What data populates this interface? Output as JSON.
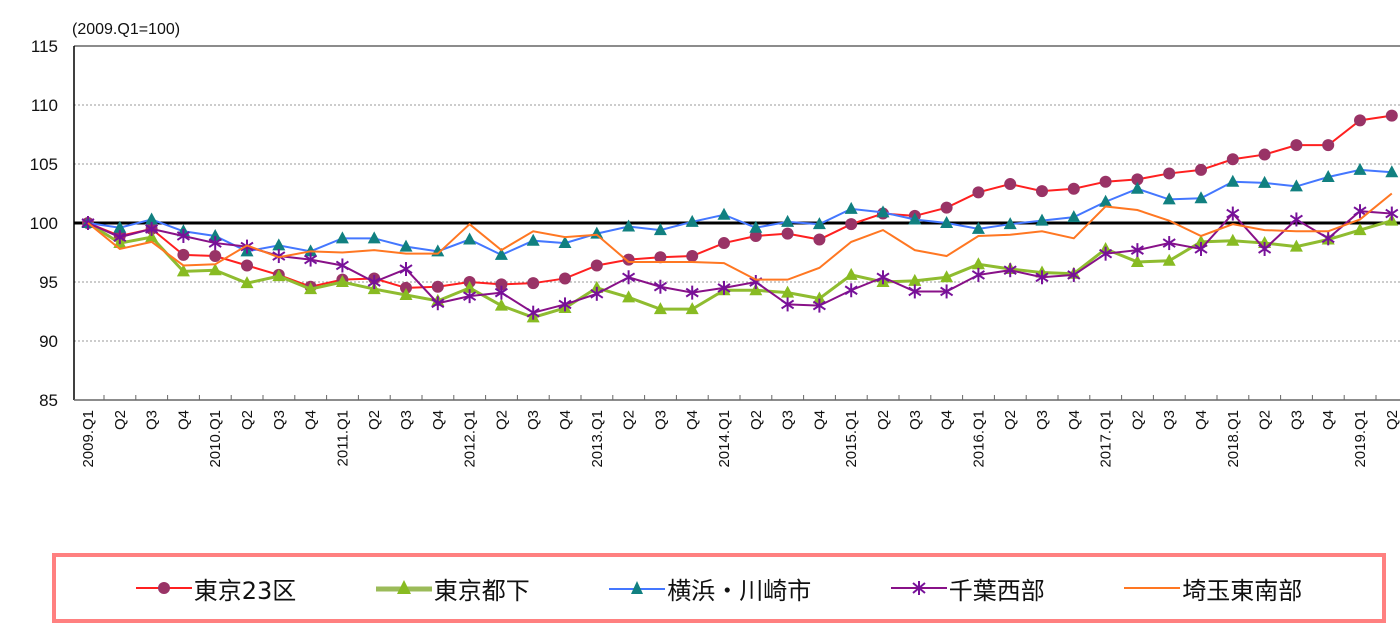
{
  "chart_data": {
    "type": "line",
    "title": "",
    "subtitle": "(2009.Q1=100)",
    "xlabel": "",
    "ylabel": "",
    "ylim": [
      85,
      115
    ],
    "yticks": [
      85,
      90,
      95,
      100,
      105,
      110,
      115
    ],
    "grid": true,
    "baseline": 100,
    "legend_position": "bottom",
    "x": [
      "2009.Q1",
      "Q2",
      "Q3",
      "Q4",
      "2010.Q1",
      "Q2",
      "Q3",
      "Q4",
      "2011.Q1",
      "Q2",
      "Q3",
      "Q4",
      "2012.Q1",
      "Q2",
      "Q3",
      "Q4",
      "2013.Q1",
      "Q2",
      "Q3",
      "Q4",
      "2014.Q1",
      "Q2",
      "Q3",
      "Q4",
      "2015.Q1",
      "Q2",
      "Q3",
      "Q4",
      "2016.Q1",
      "Q2",
      "Q3",
      "Q4",
      "2017.Q1",
      "Q2",
      "Q3",
      "Q4",
      "2018.Q1",
      "Q2",
      "Q3",
      "Q4",
      "2019.Q1",
      "Q2"
    ],
    "series": [
      {
        "name": "東京23区",
        "line_color": "#ff2020",
        "marker": "circle",
        "marker_color": "#993366",
        "values": [
          100,
          98.9,
          99.5,
          97.3,
          97.2,
          96.4,
          95.6,
          94.6,
          95.2,
          95.3,
          94.5,
          94.6,
          95.0,
          94.8,
          94.9,
          95.3,
          96.4,
          96.9,
          97.1,
          97.2,
          98.3,
          98.9,
          99.1,
          98.6,
          99.9,
          100.8,
          100.6,
          101.3,
          102.6,
          103.3,
          102.7,
          102.9,
          103.5,
          103.7,
          104.2,
          104.5,
          105.4,
          105.8,
          106.6,
          106.6,
          108.7,
          109.1
        ]
      },
      {
        "name": "東京都下",
        "line_color": "#8fbc30",
        "marker": "triangle",
        "marker_color": "#88bb22",
        "values": [
          100,
          98.3,
          98.8,
          95.9,
          96.0,
          94.9,
          95.5,
          94.4,
          95.0,
          94.4,
          93.9,
          93.4,
          94.5,
          93.0,
          92.0,
          92.8,
          94.5,
          93.7,
          92.7,
          92.7,
          94.3,
          94.3,
          94.1,
          93.6,
          95.6,
          95.0,
          95.1,
          95.4,
          96.5,
          96.1,
          95.8,
          95.7,
          97.8,
          96.7,
          96.8,
          98.4,
          98.5,
          98.3,
          98.0,
          98.6,
          99.4,
          100.2
        ]
      },
      {
        "name": "横浜・川崎市",
        "line_color": "#4477ff",
        "marker": "triangle",
        "marker_color": "#118080",
        "values": [
          100,
          99.6,
          100.3,
          99.3,
          98.9,
          97.6,
          98.1,
          97.6,
          98.7,
          98.7,
          98.0,
          97.6,
          98.6,
          97.3,
          98.5,
          98.3,
          99.1,
          99.7,
          99.4,
          100.1,
          100.7,
          99.6,
          100.1,
          99.9,
          101.2,
          100.9,
          100.3,
          100.0,
          99.5,
          99.9,
          100.2,
          100.5,
          101.8,
          102.9,
          102.0,
          102.1,
          103.5,
          103.4,
          103.1,
          103.9,
          104.5,
          104.3
        ]
      },
      {
        "name": "千葉西部",
        "line_color": "#881188",
        "marker": "asterisk",
        "marker_color": "#771199",
        "values": [
          100,
          98.8,
          99.5,
          98.9,
          98.3,
          98.0,
          97.2,
          96.9,
          96.4,
          95.0,
          96.1,
          93.2,
          93.8,
          94.1,
          92.4,
          93.1,
          94.0,
          95.4,
          94.6,
          94.1,
          94.5,
          95.0,
          93.1,
          93.0,
          94.3,
          95.4,
          94.2,
          94.2,
          95.6,
          96.0,
          95.4,
          95.6,
          97.4,
          97.7,
          98.3,
          97.8,
          100.8,
          97.8,
          100.3,
          98.7,
          101.0,
          100.8
        ]
      },
      {
        "name": "埼玉東南部",
        "line_color": "#ff7722",
        "marker": "none",
        "marker_color": "#ff7722",
        "values": [
          100,
          97.8,
          98.4,
          96.4,
          96.5,
          98.1,
          97.1,
          97.6,
          97.5,
          97.7,
          97.4,
          97.4,
          99.9,
          97.7,
          99.3,
          98.8,
          99.0,
          96.7,
          96.7,
          96.7,
          96.6,
          95.2,
          95.2,
          96.2,
          98.4,
          99.4,
          97.7,
          97.2,
          98.9,
          99.0,
          99.3,
          98.7,
          101.4,
          101.1,
          100.2,
          98.9,
          99.9,
          99.4,
          99.3,
          99.3,
          100.3,
          102.5
        ]
      }
    ]
  },
  "legend": {
    "border_color": "#ff8080",
    "items": [
      {
        "label": "東京23区"
      },
      {
        "label": "東京都下"
      },
      {
        "label": "横浜・川崎市"
      },
      {
        "label": "千葉西部"
      },
      {
        "label": "埼玉東南部"
      }
    ]
  }
}
